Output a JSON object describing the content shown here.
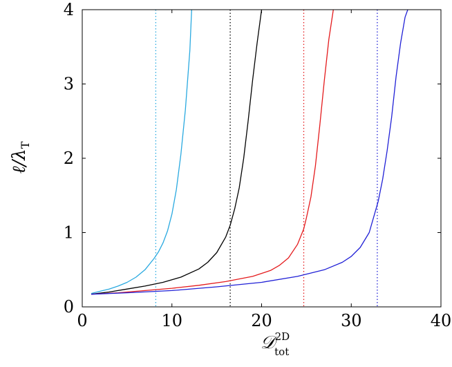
{
  "chart_data": {
    "type": "line",
    "xlabel": "𝒟",
    "xlabel_sup": "2D",
    "xlabel_sub": "tot",
    "ylabel": "ℓ/λ",
    "ylabel_sub": "T",
    "xlim": [
      0,
      40
    ],
    "ylim": [
      0,
      4
    ],
    "xticks": [
      "0",
      "10",
      "20",
      "30",
      "40"
    ],
    "yticks": [
      "0",
      "1",
      "2",
      "3",
      "4"
    ],
    "grid": false,
    "legend": "none",
    "vlines": [
      {
        "x": 8.2,
        "color": "#29a9e0"
      },
      {
        "x": 16.5,
        "color": "#000000"
      },
      {
        "x": 24.7,
        "color": "#e41a1c"
      },
      {
        "x": 32.9,
        "color": "#1f1fd6"
      }
    ],
    "series": [
      {
        "color": "#29a9e0",
        "x": [
          1,
          2,
          3,
          4,
          5,
          6,
          7,
          8,
          8.5,
          9,
          9.5,
          10,
          10.5,
          11,
          11.5,
          12,
          12.2
        ],
        "y": [
          0.18,
          0.21,
          0.24,
          0.28,
          0.33,
          0.4,
          0.5,
          0.65,
          0.74,
          0.86,
          1.02,
          1.25,
          1.58,
          2.05,
          2.65,
          3.45,
          4.0
        ]
      },
      {
        "color": "#000000",
        "x": [
          1,
          3,
          5,
          7,
          9,
          11,
          13,
          14,
          15,
          16,
          16.5,
          17,
          17.5,
          18,
          18.5,
          19,
          19.5,
          20
        ],
        "y": [
          0.17,
          0.2,
          0.24,
          0.28,
          0.33,
          0.4,
          0.51,
          0.6,
          0.73,
          0.94,
          1.1,
          1.32,
          1.6,
          2.0,
          2.5,
          3.05,
          3.55,
          4.0
        ]
      },
      {
        "color": "#e41a1c",
        "x": [
          1,
          4,
          7,
          10,
          13,
          16,
          19,
          21,
          22,
          23,
          24,
          24.7,
          25,
          25.5,
          26,
          26.5,
          27,
          27.5,
          28
        ],
        "y": [
          0.17,
          0.19,
          0.22,
          0.25,
          0.29,
          0.34,
          0.41,
          0.49,
          0.56,
          0.66,
          0.84,
          1.05,
          1.2,
          1.48,
          1.9,
          2.45,
          3.05,
          3.6,
          4.0
        ]
      },
      {
        "color": "#1f1fd6",
        "x": [
          1,
          5,
          10,
          15,
          20,
          24,
          27,
          29,
          30,
          31,
          32,
          33,
          33.5,
          34,
          34.5,
          35,
          35.5,
          36,
          36.3
        ],
        "y": [
          0.17,
          0.19,
          0.22,
          0.27,
          0.33,
          0.41,
          0.5,
          0.6,
          0.68,
          0.8,
          1.0,
          1.42,
          1.72,
          2.1,
          2.55,
          3.1,
          3.55,
          3.9,
          4.0
        ]
      }
    ]
  }
}
